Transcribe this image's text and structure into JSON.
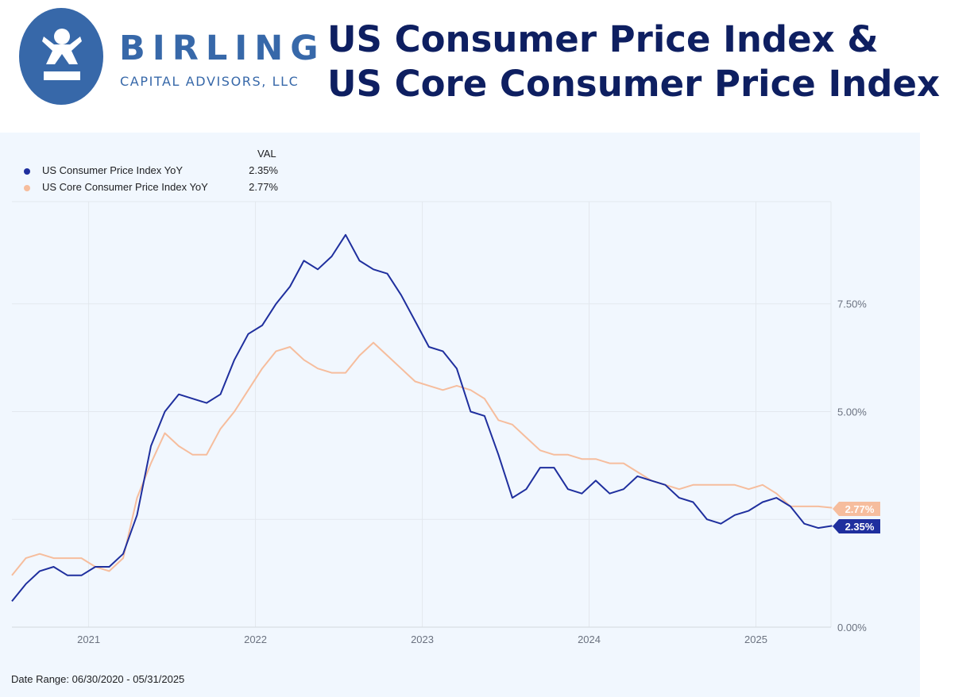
{
  "header": {
    "logo_name": "BIRLING",
    "logo_subtitle": "CAPITAL ADVISORS, LLC",
    "title_line1": "US Consumer Price Index &",
    "title_line2": "US Core Consumer Price Index"
  },
  "colors": {
    "cpi": "#1f2f9e",
    "core": "#f6bd9d",
    "title": "#0e1f61",
    "logo": "#3768a9",
    "panel_bg": "#f1f7fe"
  },
  "legend": {
    "value_header": "VAL",
    "items": [
      {
        "name": "US Consumer Price Index YoY",
        "value": "2.35%"
      },
      {
        "name": "US Core Consumer Price Index YoY",
        "value": "2.77%"
      }
    ]
  },
  "footer": {
    "date_range": "Date Range: 06/30/2020 - 05/31/2025"
  },
  "chart_data": {
    "type": "line",
    "x_start": "2020-07",
    "x_end": "2025-05",
    "xlim": [
      2020.54,
      2025.45
    ],
    "xticks": [
      {
        "value": 2021.0,
        "label": "2021"
      },
      {
        "value": 2022.0,
        "label": "2022"
      },
      {
        "value": 2023.0,
        "label": "2023"
      },
      {
        "value": 2024.0,
        "label": "2024"
      },
      {
        "value": 2025.0,
        "label": "2025"
      }
    ],
    "ylim": [
      0,
      9.87
    ],
    "yticks": [
      {
        "value": 0,
        "label": "0.00%"
      },
      {
        "value": 2.5,
        "label": ""
      },
      {
        "value": 5.0,
        "label": "5.00%"
      },
      {
        "value": 7.5,
        "label": "7.50%"
      }
    ],
    "end_labels": [
      "2.35%",
      "2.77%"
    ],
    "series": [
      {
        "name": "US Consumer Price Index YoY",
        "values": [
          0.6,
          1.0,
          1.3,
          1.4,
          1.2,
          1.2,
          1.4,
          1.4,
          1.7,
          2.6,
          4.2,
          5.0,
          5.4,
          5.3,
          5.2,
          5.4,
          6.2,
          6.8,
          7.0,
          7.5,
          7.9,
          8.5,
          8.3,
          8.6,
          9.1,
          8.5,
          8.3,
          8.2,
          7.7,
          7.1,
          6.5,
          6.4,
          6.0,
          5.0,
          4.9,
          4.0,
          3.0,
          3.2,
          3.7,
          3.7,
          3.2,
          3.1,
          3.4,
          3.1,
          3.2,
          3.5,
          3.4,
          3.3,
          3.0,
          2.9,
          2.5,
          2.4,
          2.6,
          2.7,
          2.9,
          3.0,
          2.8,
          2.4,
          2.3,
          2.35
        ]
      },
      {
        "name": "US Core Consumer Price Index YoY",
        "values": [
          1.2,
          1.6,
          1.7,
          1.6,
          1.6,
          1.6,
          1.4,
          1.3,
          1.6,
          3.0,
          3.8,
          4.5,
          4.2,
          4.0,
          4.0,
          4.6,
          5.0,
          5.5,
          6.0,
          6.4,
          6.5,
          6.2,
          6.0,
          5.9,
          5.9,
          6.3,
          6.6,
          6.3,
          6.0,
          5.7,
          5.6,
          5.5,
          5.6,
          5.5,
          5.3,
          4.8,
          4.7,
          4.4,
          4.1,
          4.0,
          4.0,
          3.9,
          3.9,
          3.8,
          3.8,
          3.6,
          3.4,
          3.3,
          3.2,
          3.3,
          3.3,
          3.3,
          3.3,
          3.2,
          3.3,
          3.1,
          2.8,
          2.8,
          2.8,
          2.77
        ]
      }
    ]
  }
}
